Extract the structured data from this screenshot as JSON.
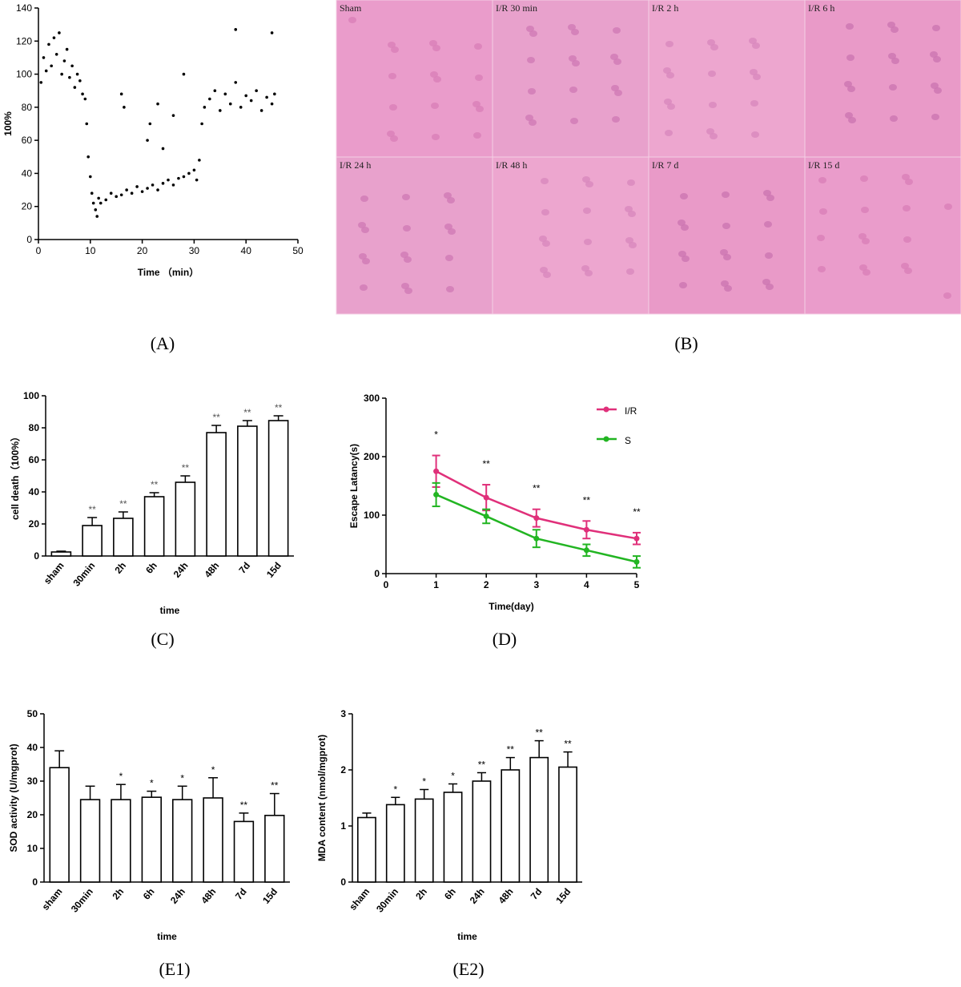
{
  "chart_data": [
    {
      "type": "scatter",
      "caption": "(A)",
      "x_label": "Time （min）",
      "y_label": "100%",
      "color": "#000000",
      "xlim": [
        0,
        50
      ],
      "xticks": [
        0,
        10,
        20,
        30,
        40,
        50
      ],
      "ylim": [
        0,
        140
      ],
      "yticks": [
        0,
        20,
        40,
        60,
        80,
        100,
        120,
        140
      ],
      "x": [
        0.5,
        1,
        1.5,
        2,
        2.5,
        3,
        3.5,
        4,
        4.5,
        5,
        5.5,
        6,
        6.5,
        7,
        7.5,
        8,
        8.5,
        9,
        9.3,
        9.6,
        10,
        10.3,
        10.6,
        11,
        11.3,
        11.6,
        12,
        13,
        14,
        15,
        16,
        17,
        18,
        19,
        20,
        21,
        22,
        23,
        24,
        25,
        26,
        27,
        28,
        29,
        30,
        30.5,
        31,
        31.5,
        32,
        33,
        34,
        35,
        36,
        37,
        38,
        39,
        40,
        41,
        42,
        43,
        44,
        45,
        45.5,
        16,
        16.5,
        21,
        21.5,
        23,
        24,
        26,
        28,
        38,
        45
      ],
      "y": [
        95,
        110,
        102,
        118,
        105,
        122,
        112,
        125,
        100,
        108,
        115,
        98,
        105,
        92,
        100,
        96,
        88,
        85,
        70,
        50,
        38,
        28,
        22,
        18,
        14,
        25,
        22,
        24,
        28,
        26,
        27,
        30,
        28,
        32,
        29,
        31,
        33,
        30,
        34,
        36,
        33,
        37,
        38,
        40,
        42,
        36,
        48,
        70,
        80,
        85,
        90,
        78,
        88,
        82,
        95,
        80,
        87,
        84,
        90,
        78,
        86,
        82,
        88,
        88,
        80,
        60,
        70,
        82,
        55,
        75,
        100,
        127,
        125
      ]
    },
    {
      "type": "bar",
      "caption": "(C)",
      "x_label": "time",
      "y_label": "cell death（100%）",
      "color": "#ffffff",
      "categories": [
        "sham",
        "30min",
        "2h",
        "6h",
        "24h",
        "48h",
        "7d",
        "15d"
      ],
      "values": [
        2.5,
        19,
        23.5,
        37,
        46,
        77,
        81,
        84.5
      ],
      "errors": [
        0.5,
        5,
        4,
        2.5,
        4,
        4.5,
        3.5,
        3
      ],
      "annotations": [
        null,
        "**",
        "**",
        "**",
        "**",
        "**",
        "**",
        "**"
      ],
      "ylim": [
        0,
        100
      ],
      "yticks": [
        0,
        20,
        40,
        60,
        80,
        100
      ]
    },
    {
      "type": "line",
      "caption": "(D)",
      "x_label": "Time(day)",
      "y_label": "Escape Latancy(s)",
      "x": [
        1,
        2,
        3,
        4,
        5
      ],
      "xlim": [
        0,
        5
      ],
      "xticks": [
        0,
        1,
        2,
        3,
        4,
        5
      ],
      "ylim": [
        0,
        300
      ],
      "yticks": [
        0,
        100,
        200,
        300
      ],
      "annotations": [
        "*",
        "**",
        "**",
        "**",
        "**"
      ],
      "series": [
        {
          "name": "I/R",
          "color": "#e0307a",
          "values": [
            175,
            130,
            95,
            75,
            60
          ],
          "errors": [
            27,
            22,
            15,
            15,
            10
          ]
        },
        {
          "name": "S",
          "color": "#22b522",
          "values": [
            135,
            98,
            60,
            40,
            20
          ],
          "errors": [
            20,
            12,
            15,
            10,
            10
          ]
        }
      ]
    },
    {
      "type": "bar",
      "caption": "(E1)",
      "x_label": "time",
      "y_label": "SOD activity (U/mgprot)",
      "color": "#ffffff",
      "categories": [
        "sham",
        "30min",
        "2h",
        "6h",
        "24h",
        "48h",
        "7d",
        "15d"
      ],
      "values": [
        34,
        24.5,
        24.5,
        25.2,
        24.5,
        25,
        18,
        19.8
      ],
      "errors": [
        5,
        4,
        4.5,
        1.8,
        4,
        6,
        2.5,
        6.5
      ],
      "annotations": [
        null,
        null,
        "*",
        "*",
        "*",
        "*",
        "**",
        "**"
      ],
      "ylim": [
        0,
        50
      ],
      "yticks": [
        0,
        10,
        20,
        30,
        40,
        50
      ]
    },
    {
      "type": "bar",
      "caption": "(E2)",
      "x_label": "time",
      "y_label": "MDA content (nmol/mgprot)",
      "color": "#ffffff",
      "categories": [
        "sham",
        "30min",
        "2h",
        "6h",
        "24h",
        "48h",
        "7d",
        "15d"
      ],
      "values": [
        1.15,
        1.38,
        1.48,
        1.6,
        1.8,
        2.0,
        2.22,
        2.05
      ],
      "errors": [
        0.08,
        0.13,
        0.17,
        0.15,
        0.15,
        0.22,
        0.3,
        0.27
      ],
      "annotations": [
        null,
        "*",
        "*",
        "*",
        "**",
        "**",
        "**",
        "**"
      ],
      "ylim": [
        0,
        3
      ],
      "yticks": [
        0,
        1,
        2,
        3
      ]
    }
  ],
  "micrograph_panel": {
    "caption": "(B)",
    "labels": [
      "Sham",
      "I/R 30 min",
      "I/R 2 h",
      "I/R 6 h",
      "I/R 24 h",
      "I/R 48 h",
      "I/R 7 d",
      "I/R 15 d"
    ]
  }
}
